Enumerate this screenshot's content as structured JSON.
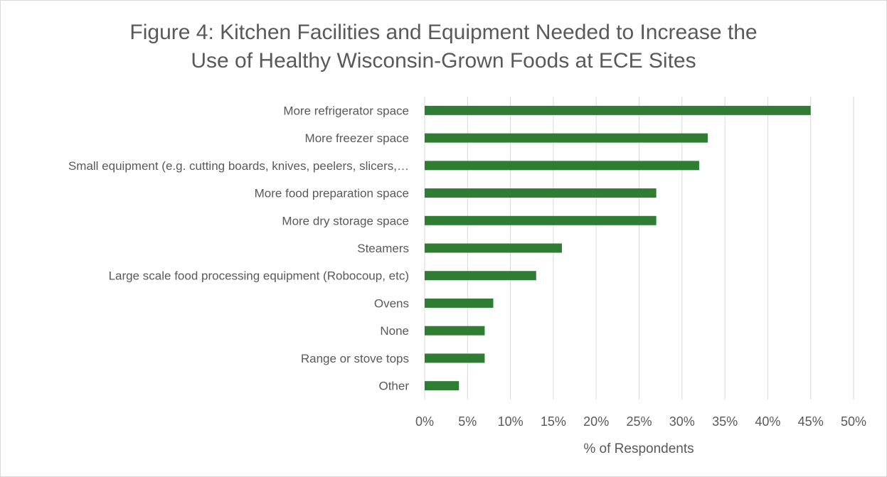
{
  "chart_data": {
    "type": "bar",
    "orientation": "horizontal",
    "title_lines": [
      "Figure 4: Kitchen Facilities and Equipment Needed to Increase the",
      "Use of Healthy Wisconsin-Grown Foods at ECE Sites"
    ],
    "categories": [
      "More refrigerator space",
      "More freezer space",
      "Small equipment (e.g. cutting boards, knives, peelers, slicers,…",
      "More food preparation space",
      "More dry storage space",
      "Steamers",
      "Large scale food processing equipment (Robocoup, etc)",
      "Ovens",
      "None",
      "Range or stove tops",
      "Other"
    ],
    "values": [
      45,
      33,
      32,
      27,
      27,
      16,
      13,
      8,
      7,
      7,
      4
    ],
    "unit": "%",
    "xlabel": "% of Respondents",
    "xlim": [
      0,
      50
    ],
    "xtick_step": 5,
    "xtick_labels": [
      "0%",
      "5%",
      "10%",
      "15%",
      "20%",
      "25%",
      "30%",
      "35%",
      "40%",
      "45%",
      "50%"
    ],
    "grid": "vertical",
    "bar_color": "#2e7d32",
    "grid_color": "#d9d9d9"
  }
}
